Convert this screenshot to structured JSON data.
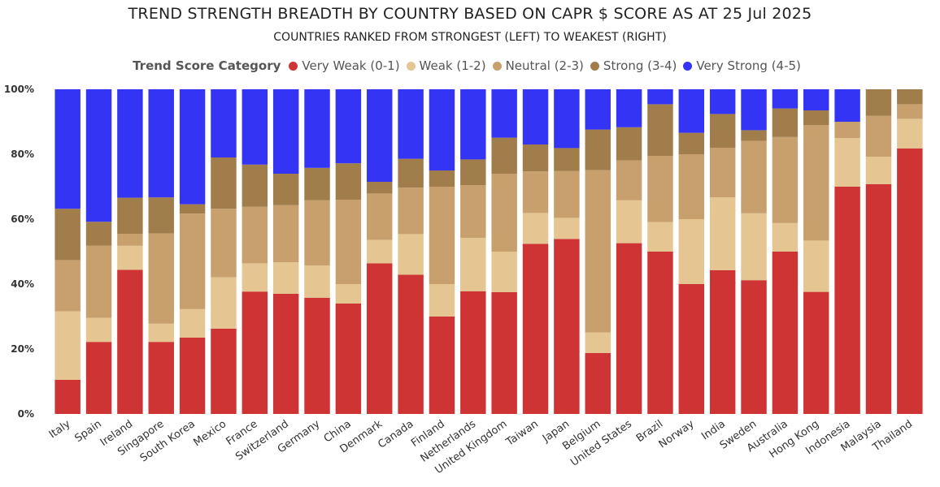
{
  "chart_data": {
    "type": "bar",
    "stacked": true,
    "title": "TREND STRENGTH BREADTH BY COUNTRY BASED ON CAPR $ SCORE AS AT 25 Jul 2025",
    "subtitle": "COUNTRIES RANKED FROM STRONGEST (LEFT) TO WEAKEST (RIGHT)",
    "legend_title": "Trend Score Category",
    "legend_position": "top",
    "y_ticks": [
      "0%",
      "20%",
      "40%",
      "60%",
      "80%",
      "100%"
    ],
    "ylim": [
      0,
      100
    ],
    "grid": false,
    "categories": [
      "Italy",
      "Spain",
      "Ireland",
      "Singapore",
      "South Korea",
      "Mexico",
      "France",
      "Switzerland",
      "Germany",
      "China",
      "Denmark",
      "Canada",
      "Finland",
      "Netherlands",
      "United Kingdom",
      "Taiwan",
      "Japan",
      "Belgium",
      "United States",
      "Brazil",
      "Norway",
      "India",
      "Sweden",
      "Australia",
      "Hong Kong",
      "Indonesia",
      "Malaysia",
      "Thailand"
    ],
    "series": [
      {
        "name": "Very Weak (0-1)",
        "color": "#cf3434",
        "values": [
          10.5,
          22.2,
          44.4,
          22.2,
          23.5,
          26.3,
          37.7,
          37.0,
          35.8,
          34.0,
          46.4,
          42.9,
          30.0,
          37.8,
          37.5,
          52.4,
          53.9,
          18.8,
          52.6,
          50.0,
          40.0,
          44.3,
          41.2,
          50.0,
          37.6,
          70.0,
          70.8,
          81.8
        ]
      },
      {
        "name": "Weak (1-2)",
        "color": "#e5c592",
        "values": [
          21.1,
          7.4,
          7.4,
          5.6,
          8.8,
          15.8,
          8.7,
          9.7,
          9.9,
          6.0,
          7.2,
          12.5,
          10.0,
          16.4,
          12.5,
          9.5,
          6.5,
          6.3,
          13.2,
          9.1,
          20.0,
          22.4,
          20.6,
          8.8,
          15.8,
          15.0,
          8.4,
          9.1
        ]
      },
      {
        "name": "Neutral (2-3)",
        "color": "#c7a06d",
        "values": [
          15.8,
          22.2,
          3.7,
          27.8,
          29.4,
          21.1,
          17.4,
          17.6,
          20.1,
          26.0,
          14.3,
          14.3,
          30.0,
          16.3,
          24.0,
          12.8,
          14.4,
          50.0,
          12.3,
          20.4,
          20.0,
          15.3,
          22.3,
          26.5,
          35.6,
          5.0,
          12.6,
          4.5
        ]
      },
      {
        "name": "Strong (3-4)",
        "color": "#a07d4b",
        "values": [
          15.8,
          7.4,
          11.1,
          11.1,
          2.9,
          15.8,
          13.0,
          9.7,
          10.0,
          11.2,
          3.6,
          8.9,
          5.0,
          7.9,
          11.1,
          8.3,
          7.1,
          12.5,
          10.2,
          15.9,
          6.6,
          10.4,
          3.3,
          8.8,
          4.5,
          0.0,
          8.2,
          4.6
        ]
      },
      {
        "name": "Very Strong (4-5)",
        "color": "#3434f5",
        "values": [
          36.8,
          40.8,
          33.4,
          33.3,
          35.4,
          21.0,
          23.2,
          26.0,
          24.2,
          22.8,
          28.5,
          21.4,
          25.0,
          21.6,
          14.9,
          17.0,
          18.1,
          12.4,
          11.7,
          4.6,
          13.4,
          7.6,
          12.6,
          5.9,
          6.5,
          10.0,
          0.0,
          0.0
        ]
      }
    ]
  }
}
